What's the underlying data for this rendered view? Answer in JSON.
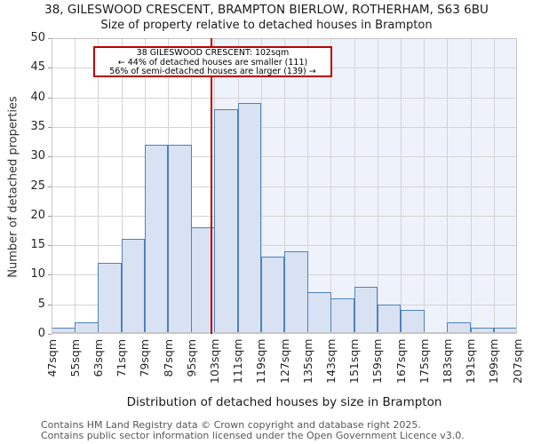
{
  "title": "38, GILESWOOD CRESCENT, BRAMPTON BIERLOW, ROTHERHAM, S63 6BU",
  "subtitle": "Size of property relative to detached houses in Brampton",
  "chart_data": {
    "type": "bar",
    "title": "38, GILESWOOD CRESCENT, BRAMPTON BIERLOW, ROTHERHAM, S63 6BU",
    "subtitle": "Size of property relative to detached houses in Brampton",
    "xlabel": "Distribution of detached houses by size in Brampton",
    "ylabel": "Number of detached properties",
    "bin_start_sqm": 47,
    "bin_size_sqm": 8,
    "tick_labels": [
      "47sqm",
      "55sqm",
      "63sqm",
      "71sqm",
      "79sqm",
      "87sqm",
      "95sqm",
      "103sqm",
      "111sqm",
      "119sqm",
      "127sqm",
      "135sqm",
      "143sqm",
      "151sqm",
      "159sqm",
      "167sqm",
      "175sqm",
      "183sqm",
      "191sqm",
      "199sqm",
      "207sqm"
    ],
    "values": [
      1,
      2,
      12,
      16,
      32,
      32,
      18,
      38,
      39,
      13,
      14,
      7,
      6,
      8,
      5,
      4,
      0,
      2,
      1,
      1
    ],
    "ylim": [
      0,
      50
    ],
    "yticks": [
      0,
      5,
      10,
      15,
      20,
      25,
      30,
      35,
      40,
      45,
      50
    ],
    "grid": true,
    "legend": "none",
    "marker": {
      "value_sqm": 102,
      "color": "#bb0000"
    },
    "shaded_region": {
      "from_sqm": 102,
      "to_sqm": 207,
      "color": "#eef2fb"
    },
    "colors": {
      "bar_fill": "#d9e2f3",
      "bar_edge": "#4f81bd",
      "grid": "#d4d4d4",
      "plot_border": "#c6c6c6",
      "marker_red": "#bb0000",
      "shade": "#eef2fb"
    }
  },
  "annotation": {
    "line1": "38 GILESWOOD CRESCENT: 102sqm",
    "line2": "← 44% of detached houses are smaller (111)",
    "line3": "56% of semi-detached houses are larger (139) →"
  },
  "footer": {
    "line1": "Contains HM Land Registry data © Crown copyright and database right 2025.",
    "line2": "Contains public sector information licensed under the Open Government Licence v3.0."
  }
}
